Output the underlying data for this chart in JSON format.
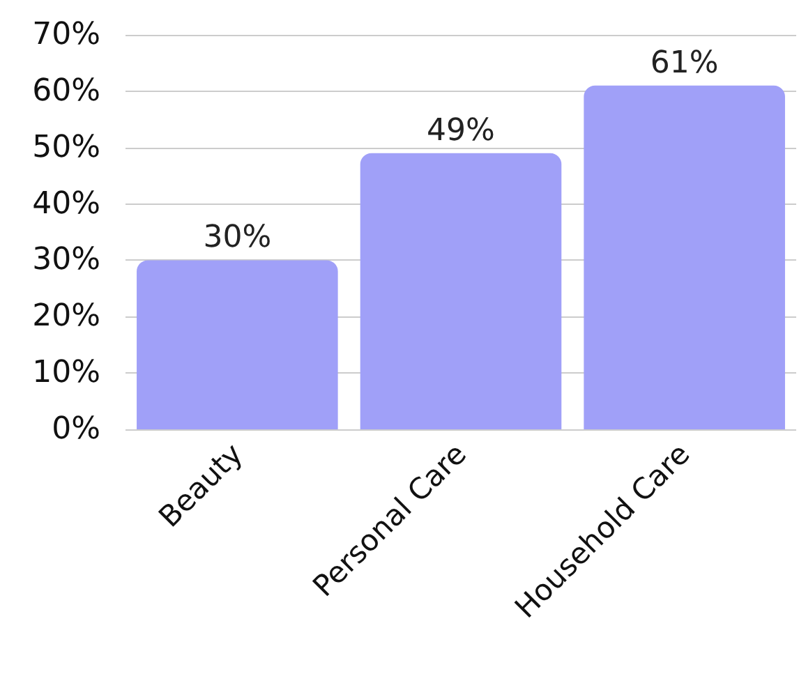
{
  "chart_data": {
    "type": "bar",
    "categories": [
      "Beauty",
      "Personal Care",
      "Household Care"
    ],
    "values": [
      30,
      49,
      61
    ],
    "color": "#a0a0f8",
    "value_labels": [
      "30%",
      "49%",
      "61%"
    ],
    "ylim": [
      0,
      70
    ],
    "yticks": [
      {
        "value": 0,
        "label": "0%"
      },
      {
        "value": 10,
        "label": "10%"
      },
      {
        "value": 20,
        "label": "20%"
      },
      {
        "value": 30,
        "label": "30%"
      },
      {
        "value": 40,
        "label": "40%"
      },
      {
        "value": 50,
        "label": "50%"
      },
      {
        "value": 60,
        "label": "60%"
      },
      {
        "value": 70,
        "label": "70%"
      }
    ],
    "grid": "y"
  }
}
